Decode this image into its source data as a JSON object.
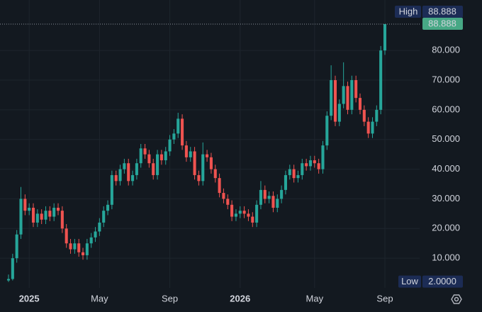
{
  "chart_data": {
    "type": "candlestick",
    "categories": [
      null,
      null,
      null,
      null,
      null,
      "2025",
      null,
      null,
      null,
      null,
      null,
      null,
      null,
      null,
      null,
      null,
      null,
      null,
      null,
      null,
      null,
      null,
      "May",
      null,
      null,
      null,
      null,
      null,
      null,
      null,
      null,
      null,
      null,
      null,
      null,
      null,
      null,
      null,
      null,
      "Sep",
      null,
      null,
      null,
      null,
      null,
      null,
      null,
      null,
      null,
      null,
      null,
      null,
      null,
      null,
      null,
      null,
      "2026",
      null,
      null,
      null,
      null,
      null,
      null,
      null,
      null,
      null,
      null,
      null,
      null,
      null,
      null,
      null,
      null,
      null,
      "May",
      null,
      null,
      null,
      null,
      null,
      null,
      null,
      null,
      null,
      null,
      null,
      null,
      null,
      null,
      null,
      null,
      "Sep"
    ],
    "open": [
      2.5,
      3,
      10,
      18,
      30,
      26,
      27,
      22,
      25,
      23,
      26,
      24,
      27,
      26,
      20,
      15,
      13,
      15,
      12,
      11,
      15,
      17,
      19,
      22,
      26,
      28,
      38,
      36,
      40,
      42,
      36,
      38,
      42,
      47,
      45,
      42,
      38,
      45,
      43,
      46,
      50,
      52,
      57,
      48,
      44,
      46,
      38,
      36,
      45,
      44,
      40,
      37,
      32,
      30,
      28,
      24,
      25,
      26,
      25,
      24,
      22,
      28,
      33,
      30,
      31,
      27,
      30,
      33,
      38,
      40,
      37,
      38,
      42,
      41,
      43,
      42,
      40,
      48,
      58,
      70,
      56,
      62,
      68,
      60,
      70,
      64,
      60,
      56,
      52,
      56,
      60,
      80
    ],
    "high": [
      4.5,
      11.5,
      19.5,
      34,
      31.5,
      28.5,
      28.5,
      26.5,
      26.5,
      27.5,
      27.5,
      28.5,
      28.5,
      27.5,
      21.5,
      16.5,
      16.5,
      16.5,
      13.5,
      16.5,
      18.5,
      20.5,
      23.5,
      27.5,
      29.5,
      39.5,
      39.5,
      41.5,
      43.5,
      43.5,
      39.5,
      43.5,
      48.5,
      48.5,
      46.5,
      43.5,
      46.5,
      46.5,
      47.5,
      51.5,
      53.5,
      59,
      58.5,
      49.5,
      47.5,
      47.5,
      39.5,
      49,
      46.5,
      45.5,
      41.5,
      38.5,
      33.5,
      31.5,
      29.5,
      26.5,
      27.5,
      27.5,
      26.5,
      25.5,
      29.5,
      36,
      34.5,
      32.5,
      32.5,
      31.5,
      34.5,
      39.5,
      41.5,
      41.5,
      39.5,
      43.5,
      43.5,
      44.5,
      44.5,
      43.5,
      49.5,
      59.5,
      75,
      71.5,
      63.5,
      76,
      69.5,
      71.5,
      71.5,
      65.5,
      61.5,
      57.5,
      57.5,
      61.5,
      81.5,
      88.888
    ],
    "low": [
      2,
      2.5,
      8.5,
      16.5,
      24.5,
      24.5,
      20.5,
      20.5,
      21.5,
      21.5,
      22.5,
      22.5,
      24.5,
      18.5,
      13.5,
      11.5,
      11.5,
      10.5,
      9.5,
      9.5,
      13.5,
      15.5,
      17.5,
      20.5,
      24.5,
      26.5,
      34.5,
      34.5,
      38.5,
      34.5,
      34.5,
      36.5,
      40.5,
      43.5,
      40.5,
      36.5,
      36.5,
      41.5,
      41.5,
      44.5,
      48.5,
      50.5,
      46.5,
      42.5,
      42.5,
      36.5,
      34.5,
      34.5,
      42.5,
      38.5,
      35.5,
      30.5,
      28.5,
      26.5,
      22.5,
      22.5,
      23.5,
      23.5,
      22.5,
      20.5,
      20.5,
      26.5,
      28.5,
      28.5,
      25.5,
      25.5,
      28.5,
      31.5,
      36.5,
      35.5,
      35.5,
      36.5,
      39.5,
      39.5,
      40.5,
      38.5,
      38.5,
      46.5,
      56.5,
      54.5,
      54.5,
      60.5,
      58.5,
      58.5,
      62.5,
      58.5,
      54.5,
      50.5,
      50.5,
      54.5,
      58.5,
      78.5
    ],
    "close": [
      3,
      10,
      18,
      30,
      26,
      27,
      22,
      25,
      23,
      26,
      24,
      27,
      26,
      20,
      15,
      13,
      15,
      12,
      11,
      15,
      17,
      19,
      22,
      26,
      28,
      38,
      36,
      40,
      42,
      36,
      38,
      42,
      47,
      45,
      42,
      38,
      45,
      43,
      46,
      50,
      52,
      57,
      48,
      44,
      46,
      38,
      36,
      45,
      44,
      40,
      37,
      32,
      30,
      28,
      24,
      25,
      26,
      25,
      24,
      22,
      28,
      33,
      30,
      31,
      27,
      30,
      33,
      38,
      40,
      37,
      38,
      42,
      41,
      43,
      42,
      40,
      48,
      58,
      70,
      56,
      62,
      68,
      60,
      70,
      64,
      60,
      56,
      52,
      56,
      60,
      80,
      88.888
    ],
    "up_color": "#26a69a",
    "down_color": "#ef5350",
    "ylim": [
      0,
      97
    ],
    "yticks": [
      {
        "value": 10,
        "label": "10.000"
      },
      {
        "value": 20,
        "label": "20.000"
      },
      {
        "value": 30,
        "label": "30.000"
      },
      {
        "value": 40,
        "label": "40.000"
      },
      {
        "value": 50,
        "label": "50.000"
      },
      {
        "value": 60,
        "label": "60.000"
      },
      {
        "value": 70,
        "label": "70.000"
      },
      {
        "value": 80,
        "label": "80.000"
      }
    ],
    "grid": true,
    "high_label": "High",
    "high_value": 88.888,
    "last_price": 88.888,
    "low_label": "Low",
    "low_value": {
      "value": 2,
      "label": "2.0000"
    }
  }
}
